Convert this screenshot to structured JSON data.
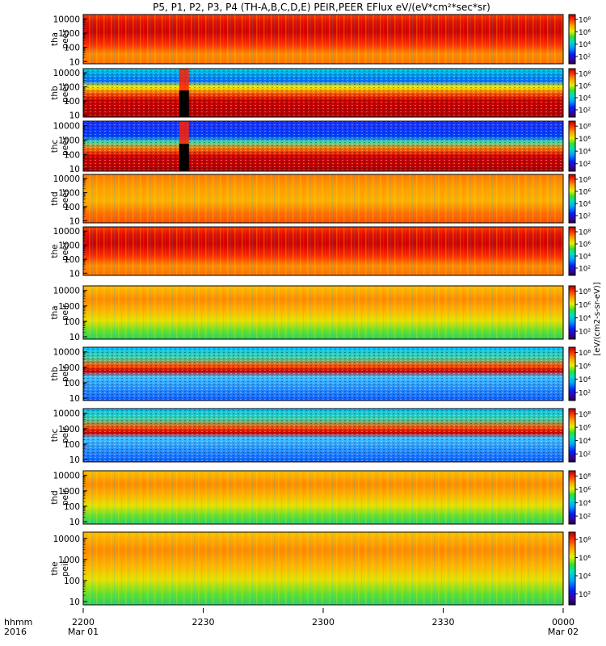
{
  "title": "P5, P1, P2, P3, P4 (TH-A,B,C,D,E) PEIR,PEER EFlux eV/(eV*cm²*sec*sr)",
  "colorbar_label": "[eV/(cm2-s-sr-eV)]",
  "time_axis": {
    "row_label": "hhmm",
    "year": "2016",
    "ticks": [
      {
        "time": "2200",
        "date": "Mar 01"
      },
      {
        "time": "2230",
        "date": ""
      },
      {
        "time": "2300",
        "date": ""
      },
      {
        "time": "2330",
        "date": ""
      },
      {
        "time": "0000",
        "date": "Mar 02"
      }
    ]
  },
  "chart_data": {
    "type": "heatmap",
    "quantity": "EFlux eV/(eV*cm²*sec*sr)",
    "x_range": [
      "2016-03-01 22:00",
      "2016-03-02 00:00"
    ],
    "y_scale": "log",
    "y_ticks": [
      "10",
      "100",
      "1000",
      "10000"
    ],
    "colorbar_ticks": [
      "10²",
      "10⁴",
      "10⁶",
      "10⁸"
    ],
    "panels": [
      {
        "probe": "tha",
        "product": "peer",
        "label": [
          "tha",
          "peer"
        ],
        "dominant_level": "high"
      },
      {
        "probe": "thb",
        "product": "peer",
        "label": [
          "thb",
          "peer"
        ],
        "dominant_level": "high",
        "data_gap": [
          "22:24",
          "22:25"
        ]
      },
      {
        "probe": "thc",
        "product": "peer",
        "label": [
          "thc",
          "peer"
        ],
        "dominant_level": "high",
        "data_gap": [
          "22:24",
          "22:25"
        ]
      },
      {
        "probe": "thd",
        "product": "peer",
        "label": [
          "thd",
          "peer"
        ],
        "dominant_level": "medium"
      },
      {
        "probe": "the",
        "product": "peer",
        "label": [
          "the",
          "peer"
        ],
        "dominant_level": "high"
      },
      {
        "probe": "tha",
        "product": "peir",
        "label": [
          "tha",
          "peir"
        ],
        "dominant_level": "medium"
      },
      {
        "probe": "thb",
        "product": "peir",
        "label": [
          "thb",
          "peir"
        ],
        "dominant_level": "mixed"
      },
      {
        "probe": "thc",
        "product": "peir",
        "label": [
          "thc",
          "peir"
        ],
        "dominant_level": "mixed"
      },
      {
        "probe": "thd",
        "product": "peir",
        "label": [
          "thd",
          "peir"
        ],
        "dominant_level": "medium"
      },
      {
        "probe": "the",
        "product": "peir",
        "label": [
          "the",
          "peir"
        ],
        "dominant_level": "medium"
      }
    ]
  }
}
